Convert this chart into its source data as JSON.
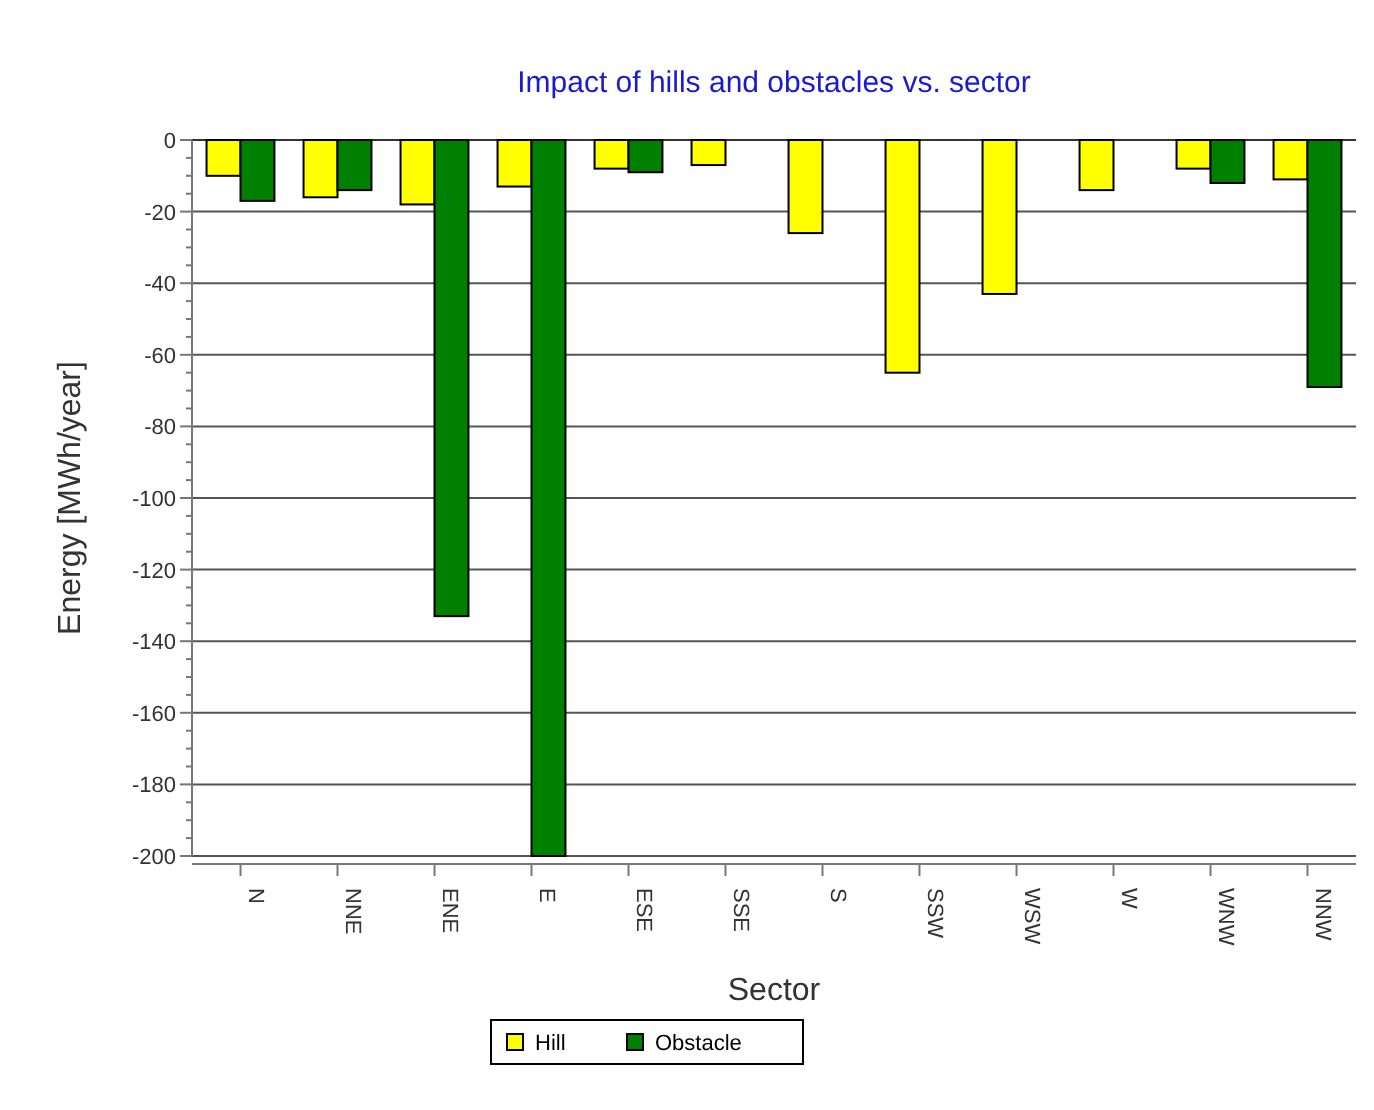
{
  "chart_data": {
    "type": "bar",
    "title": "Impact of hills and obstacles vs. sector",
    "xlabel": "Sector",
    "ylabel": "Energy [MWh/year]",
    "categories": [
      "N",
      "NNE",
      "ENE",
      "E",
      "ESE",
      "SSE",
      "S",
      "SSW",
      "WSW",
      "W",
      "WNW",
      "NNW"
    ],
    "series": [
      {
        "name": "Hill",
        "color": "#ffff00",
        "values": [
          -10,
          -16,
          -18,
          -13,
          -8,
          -7,
          -26,
          -65,
          -43,
          -14,
          -8,
          -11
        ]
      },
      {
        "name": "Obstacle",
        "color": "#008000",
        "values": [
          -17,
          -14,
          -133,
          -200,
          -9,
          0,
          0,
          0,
          0,
          0,
          -12,
          -69
        ]
      }
    ],
    "ylim": [
      -200,
      0
    ],
    "yticks": [
      -200,
      -180,
      -160,
      -140,
      -120,
      -100,
      -80,
      -60,
      -40,
      -20,
      0
    ],
    "grid": "y",
    "legend": "bottom"
  }
}
